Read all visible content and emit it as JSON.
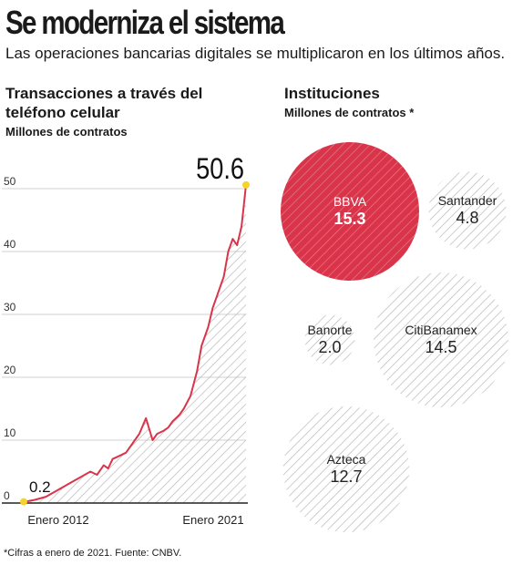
{
  "title": "Se moderniza el sistema",
  "subtitle": "Las operaciones bancarias digitales se multiplicaron en los últimos años.",
  "footnote": "*Cifras a enero de 2021. Fuente: CNBV.",
  "colors": {
    "accent": "#d9344a",
    "hatch": "#b5b5b5",
    "marker": "#f5d32a",
    "text": "#1a1a1a"
  },
  "chart_data": [
    {
      "type": "area",
      "title": "Transacciones a través del teléfono celular",
      "subtitle": "Millones de contratos",
      "ylim": [
        0,
        50
      ],
      "yticks": [
        0,
        10,
        20,
        30,
        40,
        50
      ],
      "x_labels": [
        "Enero 2012",
        "Enero 2021"
      ],
      "start_label": "0.2",
      "end_label": "50.6",
      "series": [
        {
          "x": [
            0,
            0.02,
            0.05,
            0.1,
            0.15,
            0.2,
            0.25,
            0.3,
            0.33,
            0.36,
            0.38,
            0.4,
            0.43,
            0.46,
            0.48,
            0.5,
            0.52,
            0.55,
            0.58,
            0.6,
            0.63,
            0.65,
            0.67,
            0.7,
            0.72,
            0.75,
            0.78,
            0.8,
            0.83,
            0.85,
            0.87,
            0.9,
            0.92,
            0.94,
            0.96,
            0.98,
            1.0
          ],
          "values": [
            0.2,
            0.3,
            0.5,
            1.0,
            2.0,
            3.0,
            4.0,
            5.0,
            4.5,
            6.0,
            5.5,
            7.0,
            7.5,
            8.0,
            9.0,
            10.0,
            11.0,
            13.5,
            10.0,
            11.0,
            11.5,
            12.0,
            13.0,
            14.0,
            15.0,
            17.0,
            21.0,
            25.0,
            28.0,
            31.0,
            33.0,
            36.0,
            40.0,
            42.0,
            41.0,
            44.0,
            50.6
          ]
        }
      ]
    },
    {
      "type": "bubble",
      "title": "Instituciones",
      "subtitle": "Millones de contratos *",
      "items": [
        {
          "name": "BBVA",
          "value": 15.3,
          "value_label": "15.3"
        },
        {
          "name": "Santander",
          "value": 4.8,
          "value_label": "4.8"
        },
        {
          "name": "Banorte",
          "value": 2.0,
          "value_label": "2.0"
        },
        {
          "name": "CitiBanamex",
          "value": 14.5,
          "value_label": "14.5"
        },
        {
          "name": "Azteca",
          "value": 12.7,
          "value_label": "12.7"
        }
      ]
    }
  ]
}
